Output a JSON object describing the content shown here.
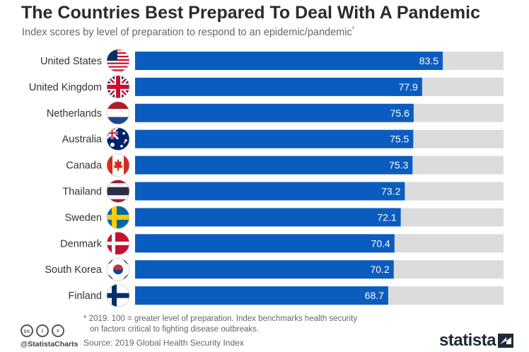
{
  "title": "The Countries Best Prepared To Deal With A Pandemic",
  "subtitle": "Index scores by level of preparation to respond to an epidemic/pandemic",
  "subtitle_mark": "*",
  "colors": {
    "bar": "#0b5cbf",
    "track": "#dcdcdc",
    "label": "#333333",
    "value_text": "#ffffff"
  },
  "chart_data": {
    "type": "bar",
    "orientation": "horizontal",
    "categories": [
      "United States",
      "United Kingdom",
      "Netherlands",
      "Australia",
      "Canada",
      "Thailand",
      "Sweden",
      "Denmark",
      "South Korea",
      "Finland"
    ],
    "values": [
      83.5,
      77.9,
      75.6,
      75.5,
      75.3,
      73.2,
      72.1,
      70.4,
      70.2,
      68.7
    ],
    "flag_icons": [
      "us-flag-icon",
      "uk-flag-icon",
      "netherlands-flag-icon",
      "australia-flag-icon",
      "canada-flag-icon",
      "thailand-flag-icon",
      "sweden-flag-icon",
      "denmark-flag-icon",
      "south-korea-flag-icon",
      "finland-flag-icon"
    ],
    "xlim": [
      0,
      100
    ],
    "data_labels": true,
    "grid": false
  },
  "footnote": {
    "line1": "* 2019. 100 = greater level of preparation. Index benchmarks health security",
    "line2": "on factors critical to fighting disease outbreaks."
  },
  "source": "Source: 2019 Global Health Security Index",
  "credit": {
    "handle": "@StatistaCharts",
    "license_icons": [
      "cc-icon",
      "attribution-icon",
      "no-derivatives-icon"
    ],
    "cc_glyphs": [
      "cc",
      "i",
      "="
    ]
  },
  "logo": {
    "text": "statista"
  }
}
